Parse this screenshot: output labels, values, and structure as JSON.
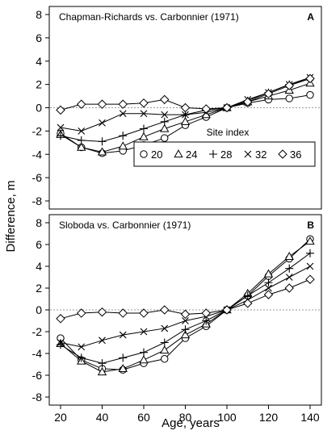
{
  "figure": {
    "ylabel": "Difference, m",
    "xlabel": "Age, years"
  },
  "legend": {
    "title": "Site index",
    "entries": [
      {
        "label": "20",
        "marker": "circle"
      },
      {
        "label": "24",
        "marker": "triangle"
      },
      {
        "label": "28",
        "marker": "plus"
      },
      {
        "label": "32",
        "marker": "cross"
      },
      {
        "label": "36",
        "marker": "diamond"
      }
    ]
  },
  "chart_data": [
    {
      "type": "line",
      "title": "Chapman-Richards vs. Carbonnier (1971)",
      "panel_label": "A",
      "xlim": [
        20,
        140
      ],
      "ylim": [
        -8,
        8
      ],
      "x_ticks": [
        20,
        40,
        60,
        80,
        100,
        120,
        140
      ],
      "y_ticks": [
        -8,
        -6,
        -4,
        -2,
        0,
        2,
        4,
        6,
        8
      ],
      "reference_line": 0,
      "x": [
        20,
        30,
        40,
        50,
        60,
        70,
        80,
        90,
        100,
        110,
        120,
        130,
        140
      ],
      "series": [
        {
          "name": "20",
          "marker": "circle",
          "values": [
            -2.2,
            -3.4,
            -3.9,
            -3.7,
            -3.2,
            -2.6,
            -1.5,
            -0.8,
            0.0,
            0.4,
            0.7,
            0.8,
            1.1
          ]
        },
        {
          "name": "24",
          "marker": "triangle",
          "values": [
            -2.3,
            -3.4,
            -3.8,
            -3.3,
            -2.5,
            -1.8,
            -1.2,
            -0.6,
            0.0,
            0.5,
            1.0,
            1.5,
            2.1
          ]
        },
        {
          "name": "28",
          "marker": "plus",
          "values": [
            -2.4,
            -2.8,
            -2.9,
            -2.4,
            -1.8,
            -1.2,
            -0.6,
            -0.2,
            0.0,
            0.6,
            1.3,
            2.0,
            2.5
          ]
        },
        {
          "name": "32",
          "marker": "cross",
          "values": [
            -1.7,
            -2.0,
            -1.3,
            -0.5,
            -0.5,
            -0.6,
            -0.6,
            -0.4,
            0.0,
            0.7,
            1.3,
            2.0,
            2.6
          ]
        },
        {
          "name": "36",
          "marker": "diamond",
          "values": [
            -0.2,
            0.3,
            0.3,
            0.3,
            0.4,
            0.7,
            0.0,
            -0.1,
            0.0,
            0.5,
            1.2,
            1.9,
            2.5
          ]
        }
      ]
    },
    {
      "type": "line",
      "title": "Sloboda vs. Carbonnier (1971)",
      "panel_label": "B",
      "xlim": [
        20,
        140
      ],
      "ylim": [
        -8,
        8
      ],
      "x_ticks": [
        20,
        40,
        60,
        80,
        100,
        120,
        140
      ],
      "y_ticks": [
        -8,
        -6,
        -4,
        -2,
        0,
        2,
        4,
        6,
        8
      ],
      "reference_line": 0,
      "x": [
        20,
        30,
        40,
        50,
        60,
        70,
        80,
        90,
        100,
        110,
        120,
        130,
        140
      ],
      "series": [
        {
          "name": "20",
          "marker": "circle",
          "values": [
            -2.6,
            -4.6,
            -5.4,
            -5.5,
            -4.9,
            -4.5,
            -2.6,
            -1.5,
            0.0,
            1.3,
            3.1,
            4.7,
            6.5
          ]
        },
        {
          "name": "24",
          "marker": "triangle",
          "values": [
            -3.1,
            -4.7,
            -5.7,
            -5.4,
            -4.6,
            -3.7,
            -2.3,
            -1.3,
            0.0,
            1.5,
            3.3,
            4.9,
            6.3
          ]
        },
        {
          "name": "28",
          "marker": "plus",
          "values": [
            -3.2,
            -4.4,
            -4.9,
            -4.4,
            -3.9,
            -3.0,
            -1.8,
            -1.0,
            0.0,
            1.3,
            2.5,
            3.8,
            5.2
          ]
        },
        {
          "name": "32",
          "marker": "cross",
          "values": [
            -3.0,
            -3.4,
            -2.8,
            -2.3,
            -2.0,
            -1.7,
            -1.0,
            -0.6,
            0.0,
            0.9,
            2.0,
            3.0,
            4.0
          ]
        },
        {
          "name": "36",
          "marker": "diamond",
          "values": [
            -0.8,
            -0.3,
            -0.2,
            -0.3,
            -0.3,
            0.0,
            -0.4,
            -0.3,
            0.0,
            0.6,
            1.4,
            2.0,
            2.8
          ]
        }
      ]
    }
  ]
}
